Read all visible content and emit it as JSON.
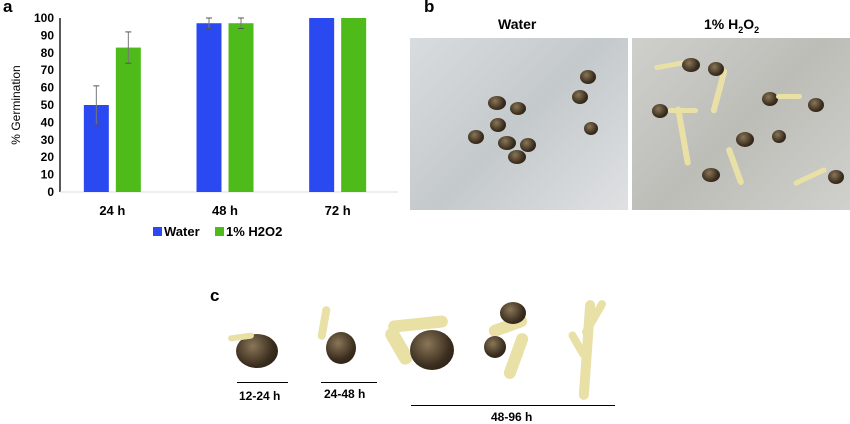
{
  "panels": {
    "a": "a",
    "b": "b",
    "c": "c"
  },
  "chart_data": {
    "type": "bar",
    "categories": [
      "24 h",
      "48 h",
      "72 h"
    ],
    "series": [
      {
        "name": "Water",
        "color": "#2b49f0",
        "values": [
          50,
          97,
          100
        ],
        "errors": [
          11,
          3,
          0
        ]
      },
      {
        "name": "1% H2O2",
        "color": "#4fbb1a",
        "values": [
          83,
          97,
          100
        ],
        "errors": [
          9,
          3,
          0
        ]
      }
    ],
    "ylabel": "% Germination",
    "xlabel": "",
    "ylim": [
      0,
      100
    ],
    "yticks": [
      "0",
      "10",
      "20",
      "30",
      "40",
      "50",
      "60",
      "70",
      "80",
      "90",
      "100"
    ],
    "legend": "bottom",
    "grid": false
  },
  "photos_b": {
    "water_title": "Water",
    "h2o2_title_prefix": "1% H",
    "h2o2_sub1": "2",
    "h2o2_mid": "O",
    "h2o2_sub2": "2"
  },
  "stages_c": [
    "12-24 h",
    "24-48 h",
    "48-96 h"
  ]
}
